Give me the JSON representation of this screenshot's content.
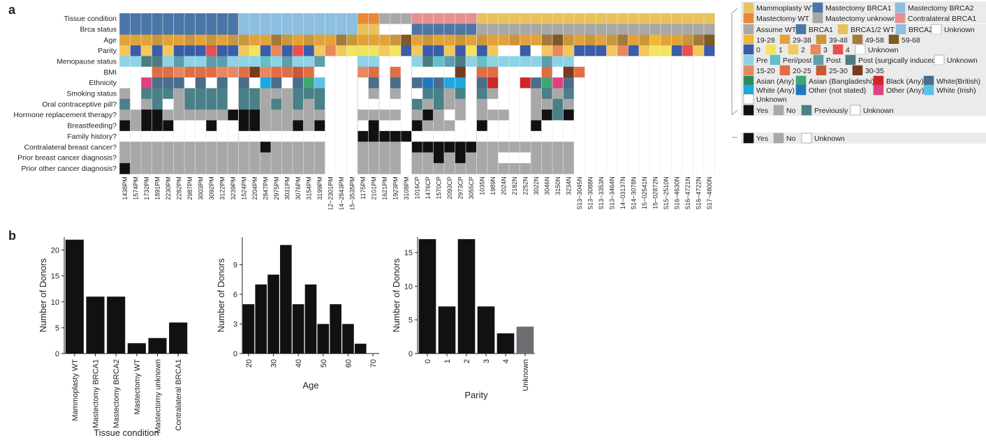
{
  "panel_labels": {
    "a": "a",
    "b": "b"
  },
  "colors": {
    "mammo_wt": "#E8C35C",
    "mast_brca1": "#4A76A8",
    "mast_brca2": "#8CBFE0",
    "mast_wt": "#E8893A",
    "mast_unknown": "#A8A8A8",
    "contra_brca1": "#E89090",
    "assume_wt": "#A8A8A8",
    "brca1": "#4A76A8",
    "brca12_wt": "#E8C35C",
    "brca2": "#8CBFE0",
    "age_19_28": "#F2B632",
    "age_29_38": "#E3A238",
    "age_39_48": "#C9963A",
    "age_49_58": "#A47A3A",
    "age_59_68": "#7E5A25",
    "par_0": "#3B5CA8",
    "par_1": "#F2E45C",
    "par_2": "#F2C75C",
    "par_3": "#E8885C",
    "par_4": "#E85050",
    "meno_pre": "#8CD3E8",
    "meno_peri": "#63BFC8",
    "meno_post": "#5A9EB0",
    "meno_surg": "#4A7E80",
    "bmi_15": "#E8885C",
    "bmi_20": "#E06E45",
    "bmi_25": "#C85A35",
    "bmi_30": "#7A3A20",
    "eth_asian_any": "#2E8B57",
    "eth_asian_bang": "#3DA870",
    "eth_black": "#D0262A",
    "eth_white_brit": "#4A6E8A",
    "eth_white_any": "#1EA8E0",
    "eth_other_ns": "#1E78C0",
    "eth_other_any": "#E04080",
    "eth_white_irish": "#5CC0E8",
    "yes": "#111111",
    "no": "#A8A8A8",
    "previously": "#4A8088",
    "unknown": "#FFFFFF",
    "bar": "#111111",
    "bar_unknown": "#6E6E72"
  },
  "heatmap": {
    "row_labels": [
      "Tissue condition",
      "Brca status",
      "Age",
      "Parity",
      "Menopause status",
      "BMI",
      "Ethnicity",
      "Smoking status",
      "Oral contraceptive pill?",
      "Hormone replacement therapy?",
      "Breastfeeding?",
      "Family history?",
      "Contralateral breast cancer?",
      "Prior breast cancer diagnosis?",
      "Prior other cancer diagnosis?"
    ],
    "col_labels": [
      "1438PM",
      "1574PM",
      "1732PM",
      "1891PM",
      "2230PM",
      "2282PM",
      "2987PM",
      "3003PM",
      "3092PM",
      "3122PM",
      "3239PM",
      "1524PM",
      "2204PM",
      "2847PM",
      "2975PM",
      "3031PM",
      "3076PM",
      "3154PM",
      "3199PM",
      "LS12~2301PM",
      "LS14~2843PM",
      "LS15~3535PM",
      "1175PM",
      "2101PM",
      "1621PM",
      "1923PM",
      "3108PM",
      "1016CP",
      "1476CP",
      "1570CP",
      "2093CP",
      "2973CP",
      "3055CP",
      "1035N",
      "1989N",
      "2024N",
      "2182N",
      "2252N",
      "3022N",
      "3046N",
      "3150N",
      "3234N",
      "LS13~3045N",
      "LS13~3088N",
      "LS13~3353N",
      "LS13~3464N",
      "LS14~03137N",
      "LS14~3078N",
      "LS15~02541N",
      "LS15~02872N",
      "LS15~2510N",
      "LS16~4630N",
      "LS16~4721N",
      "LS16~4722N",
      "LS17~4800N"
    ]
  },
  "legend_a": {
    "tissue": [
      "Mammoplasty WT",
      "Mastectomy BRCA1",
      "Mastectomy BRCA2",
      "Mastectomy WT",
      "Mastectomy unknown",
      "Contralateral BRCA1"
    ],
    "brca": [
      "Assume WT",
      "BRCA1",
      "BRCA1/2 WT",
      "BRCA2",
      "Unknown"
    ],
    "age": [
      "19-28",
      "29-38",
      "39-48",
      "49-58",
      "59-68"
    ],
    "parity": [
      "0",
      "1",
      "2",
      "3",
      "4",
      "Unknown"
    ],
    "meno": [
      "Pre",
      "Peri/post",
      "Post",
      "Post (surgically induced)",
      "Unknown"
    ],
    "bmi": [
      "15-20",
      "20-25",
      "25-30",
      "30-35"
    ],
    "ethnicity": [
      "Asian (Any)",
      "Asian (Bangladeshi)",
      "Black (Any)",
      "White(British)",
      "White (Any)",
      "Other (not stated)",
      "Other (Any)",
      "White (Irish)",
      "Unknown"
    ],
    "ynp": [
      "Yes",
      "No",
      "Previously",
      "Unknown"
    ],
    "yn": [
      "Yes",
      "No",
      "Unknown"
    ]
  },
  "chart_data": [
    {
      "type": "bar",
      "categories": [
        "Mammoplasty WT",
        "Mastectomy BRCA1",
        "Mastectomy BRCA2",
        "Mastectomy WT",
        "Mastectomy unknown",
        "Contralateral BRCA1"
      ],
      "values": [
        22,
        11,
        11,
        2,
        3,
        6
      ],
      "xlabel": "Tissue condition",
      "ylabel": "Number of Donors",
      "ylim": [
        0,
        22.5
      ],
      "yticks": [
        0,
        5,
        10,
        15,
        20
      ]
    },
    {
      "type": "bar",
      "x": [
        20,
        25,
        30,
        35,
        40,
        45,
        50,
        55,
        60,
        65
      ],
      "values": [
        5,
        7,
        8,
        11,
        5,
        7,
        3,
        5,
        3,
        1
      ],
      "xlabel": "Age",
      "ylabel": "Number of Donors",
      "ylim": [
        0,
        11.8
      ],
      "yticks": [
        0,
        3,
        6,
        9
      ],
      "xticks": [
        20,
        30,
        40,
        50,
        60,
        70
      ]
    },
    {
      "type": "bar",
      "categories": [
        "0",
        "1",
        "2",
        "3",
        "4",
        "Unknown"
      ],
      "values": [
        17,
        7,
        17,
        7,
        3,
        4
      ],
      "xlabel": "Parity",
      "ylabel": "Number of Donors",
      "ylim": [
        0,
        17.3
      ],
      "yticks": [
        0,
        5,
        10,
        15
      ]
    }
  ]
}
